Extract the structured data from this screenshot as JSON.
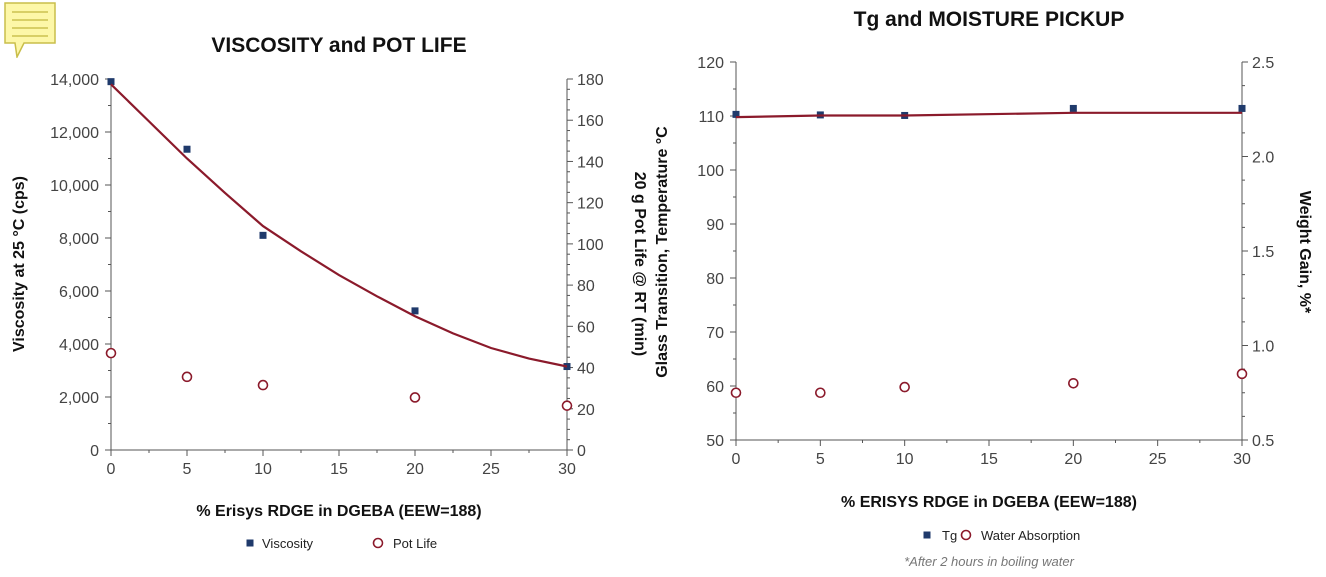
{
  "charts": [
    {
      "title": "VISCOSITY and POT LIFE",
      "xlabel": "% Erisys RDGE in DGEBA (EEW=188)",
      "ylabel_left": "Viscosity at 25 °C (cps)",
      "ylabel_right": "20 g Pot Life @ RT (min)",
      "legend": [
        "Viscosity",
        "Pot Life"
      ]
    },
    {
      "title": "Tg and MOISTURE PICKUP",
      "xlabel": "% ERISYS RDGE in DGEBA (EEW=188)",
      "ylabel_left": "Glass Transition, Temperature °C",
      "ylabel_right": "Weight Gain, %*",
      "legend": [
        "Tg",
        "Water Absorption"
      ],
      "footnote": "*After 2 hours in boiling water"
    }
  ],
  "colors": {
    "marker_blue": "#1f3a6b",
    "line_red": "#8b1a2b",
    "axis": "#555555"
  },
  "icons": {
    "note": "note-icon"
  },
  "chart_data": [
    {
      "type": "scatter",
      "title": "VISCOSITY and POT LIFE",
      "xlabel": "% Erisys RDGE in DGEBA (EEW=188)",
      "ylabel": "Viscosity at 25 °C (cps)",
      "y2label": "20 g Pot Life @ RT (min)",
      "xlim": [
        0,
        30
      ],
      "ylim": [
        0,
        14000
      ],
      "y2lim": [
        0,
        180
      ],
      "xticks": [
        0,
        5,
        10,
        15,
        20,
        25,
        30
      ],
      "yticks": [
        0,
        2000,
        4000,
        6000,
        8000,
        10000,
        12000,
        14000
      ],
      "yticklabels": [
        "0",
        "2,000",
        "4,000",
        "6,000",
        "8,000",
        "10,000",
        "12,000",
        "14,000"
      ],
      "y2ticks": [
        0,
        20,
        40,
        60,
        80,
        100,
        120,
        140,
        160,
        180
      ],
      "legend_position": "bottom",
      "grid": false,
      "series": [
        {
          "name": "Viscosity",
          "axis": "left",
          "marker": "square",
          "x": [
            0,
            5,
            10,
            20,
            30
          ],
          "y": [
            13900,
            11350,
            8100,
            5250,
            3150
          ]
        },
        {
          "name": "Pot Life",
          "axis": "right",
          "marker": "circle",
          "x": [
            0,
            5,
            10,
            20,
            30
          ],
          "y": [
            47,
            35.5,
            31.5,
            25.5,
            21.5
          ]
        },
        {
          "axis": "left",
          "marker": "line",
          "x": [
            0,
            2.5,
            5,
            7.5,
            10,
            12.5,
            15,
            17.5,
            20,
            22.5,
            25,
            27.5,
            30
          ],
          "y": [
            13800,
            12400,
            11000,
            9700,
            8450,
            7500,
            6600,
            5800,
            5050,
            4400,
            3850,
            3450,
            3150
          ]
        }
      ]
    },
    {
      "type": "scatter",
      "title": "Tg and MOISTURE PICKUP",
      "xlabel": "% ERISYS RDGE in DGEBA (EEW=188)",
      "ylabel": "Glass Transition, Temperature °C",
      "y2label": "Weight Gain, %*",
      "xlim": [
        0,
        30
      ],
      "ylim": [
        50,
        120
      ],
      "y2lim": [
        0.5,
        2.5
      ],
      "xticks": [
        0,
        5,
        10,
        15,
        20,
        25,
        30
      ],
      "yticks": [
        50,
        60,
        70,
        80,
        90,
        100,
        110,
        120
      ],
      "y2ticks": [
        0.5,
        1.0,
        1.5,
        2.0,
        2.5
      ],
      "y2ticklabels": [
        "0.5",
        "1.0",
        "1.5",
        "2.0",
        "2.5"
      ],
      "legend_position": "bottom",
      "grid": false,
      "footnote": "*After 2 hours in boiling water",
      "series": [
        {
          "name": "Tg",
          "axis": "left",
          "marker": "square",
          "x": [
            0,
            5,
            10,
            20,
            30
          ],
          "y": [
            110.3,
            110.2,
            110.1,
            111.4,
            111.4
          ]
        },
        {
          "name": "Water Absorption",
          "axis": "right",
          "marker": "circle",
          "x": [
            0,
            5,
            10,
            20,
            30
          ],
          "y": [
            0.75,
            0.75,
            0.78,
            0.8,
            0.85
          ]
        },
        {
          "axis": "left",
          "marker": "line",
          "x": [
            0,
            5,
            10,
            20,
            30
          ],
          "y": [
            109.8,
            110.1,
            110.1,
            110.6,
            110.6
          ]
        }
      ]
    }
  ]
}
